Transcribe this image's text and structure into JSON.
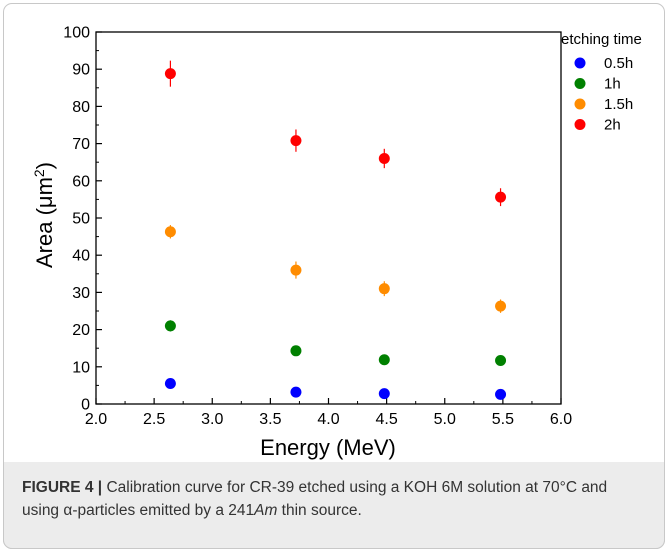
{
  "chart_data": {
    "type": "scatter",
    "title": "",
    "xlabel": "Energy (MeV)",
    "ylabel": "Area (μm²)",
    "ylabel_parts": {
      "prefix": "Area (μm",
      "sup": "2",
      "suffix": ")"
    },
    "xlim": [
      2.0,
      6.0
    ],
    "ylim": [
      0,
      100
    ],
    "x_ticks": [
      "2.0",
      "2.5",
      "3.0",
      "3.5",
      "4.0",
      "4.5",
      "5.0",
      "5.5",
      "6.0"
    ],
    "y_ticks": [
      "0",
      "10",
      "20",
      "30",
      "40",
      "50",
      "60",
      "70",
      "80",
      "90",
      "100"
    ],
    "legend_title": "etching time",
    "legend_position": "top-right",
    "grid": false,
    "series": [
      {
        "name": "0.5h",
        "color": "#0000ff",
        "x": [
          2.64,
          3.72,
          4.48,
          5.48
        ],
        "y": [
          5.5,
          3.2,
          2.8,
          2.6
        ],
        "err": [
          1.0,
          1.0,
          0.8,
          0.8
        ]
      },
      {
        "name": "1h",
        "color": "#008000",
        "x": [
          2.64,
          3.72,
          4.48,
          5.48
        ],
        "y": [
          21.0,
          14.3,
          11.9,
          11.7
        ],
        "err": [
          1.5,
          1.4,
          1.2,
          1.2
        ]
      },
      {
        "name": "1.5h",
        "color": "#ff8c00",
        "x": [
          2.64,
          3.72,
          4.48,
          5.48
        ],
        "y": [
          46.3,
          36.0,
          31.0,
          26.3
        ],
        "err": [
          1.8,
          2.3,
          2.0,
          1.8
        ]
      },
      {
        "name": "2h",
        "color": "#ff0000",
        "x": [
          2.64,
          3.72,
          4.48,
          5.48
        ],
        "y": [
          88.8,
          70.8,
          66.0,
          55.6
        ],
        "err": [
          3.5,
          3.0,
          2.6,
          2.4
        ]
      }
    ]
  },
  "caption": {
    "label": "FIGURE 4 |",
    "text_part1": " Calibration curve for CR-39 etched using a KOH 6M solution at 70°C and using α-particles emitted by a 241",
    "text_italic": "Am",
    "text_part2": " thin source."
  }
}
